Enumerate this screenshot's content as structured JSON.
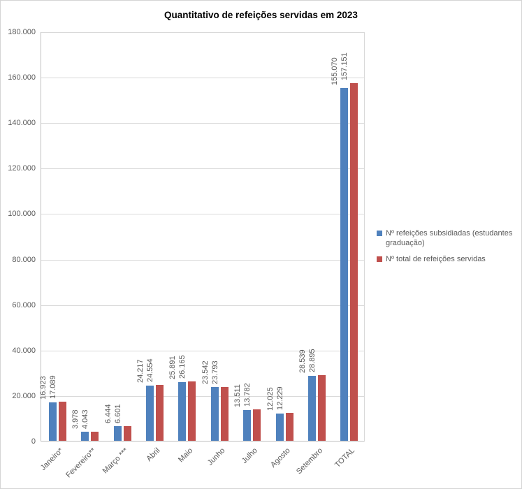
{
  "chart_data": {
    "type": "bar",
    "title": "Quantitativo de refeições servidas em 2023",
    "categories": [
      "Janeiro*",
      "Fevereiro**",
      "Março ***",
      "Abril",
      "Maio",
      "Junho",
      "Julho",
      "Agosto",
      "Setembro",
      "TOTAL"
    ],
    "series": [
      {
        "name": "Nº refeições subsidiadas (estudantes graduação)",
        "color": "#4F81BD",
        "values": [
          16923,
          3978,
          6444,
          24217,
          25891,
          23542,
          13511,
          12025,
          28539,
          155070
        ]
      },
      {
        "name": "Nº total de refeições servidas",
        "color": "#C0504D",
        "values": [
          17089,
          4043,
          6601,
          24554,
          26165,
          23793,
          13782,
          12229,
          28895,
          157151
        ]
      }
    ],
    "ylim": [
      0,
      180000
    ],
    "ytick_step": 20000,
    "ytick_labels": [
      "0",
      "20.000",
      "40.000",
      "60.000",
      "80.000",
      "100.000",
      "120.000",
      "140.000",
      "160.000",
      "180.000"
    ],
    "grid": true,
    "legend_position": "right",
    "data_labels": "rotated-vertical",
    "xtick_rotation": 45,
    "number_format": "thousands-dot",
    "axis_label_color": "#595959",
    "gridline_color": "#D9D9D9"
  }
}
